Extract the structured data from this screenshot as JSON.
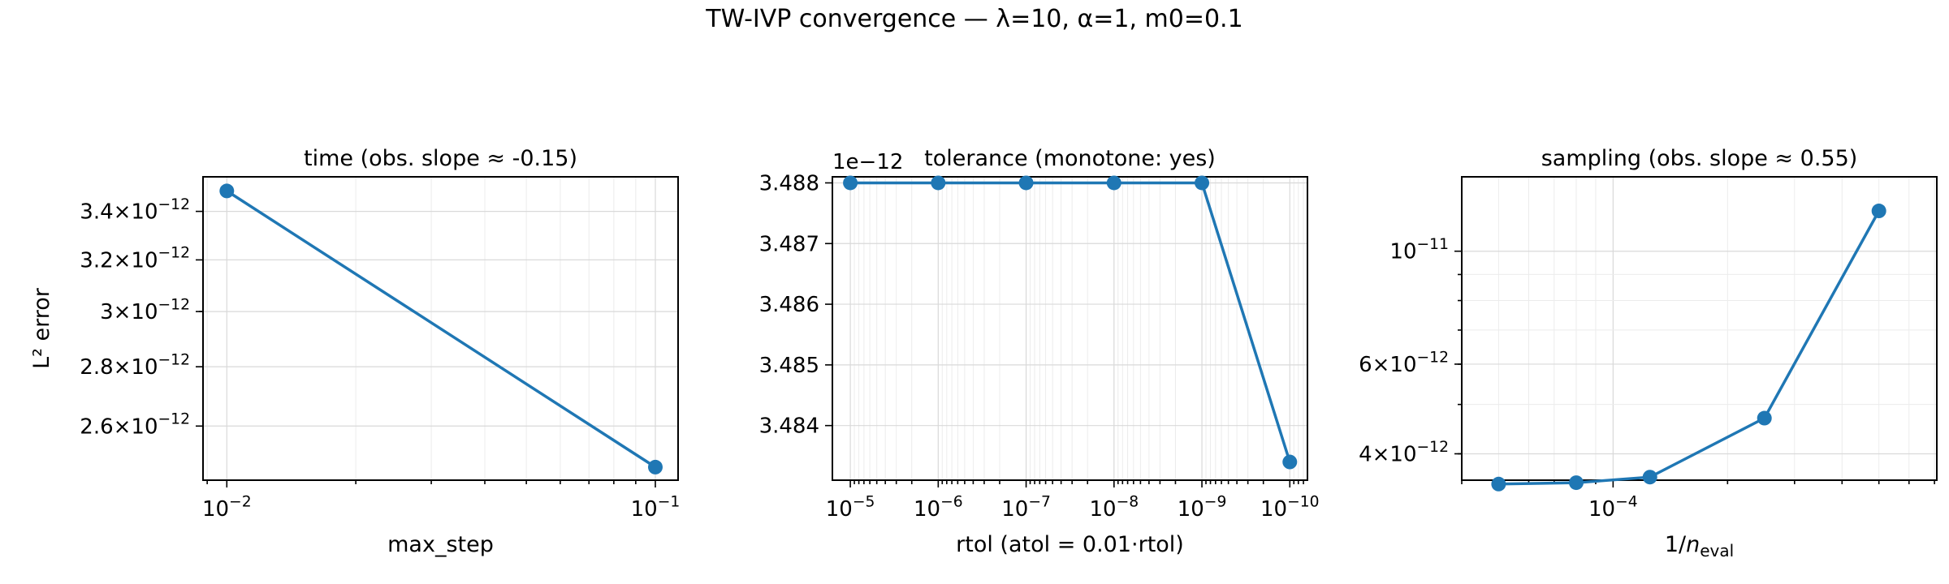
{
  "figure": {
    "title": "TW-IVP convergence — λ=10, α=1, m0=0.1",
    "colors": {
      "series": "#1f77b4"
    }
  },
  "chart_data": [
    {
      "type": "line",
      "title": "time (obs. slope ≈ -0.15)",
      "xlabel": "max_step",
      "ylabel": "L² error",
      "xscale": "log",
      "yscale": "log",
      "xlim": [
        0.0088,
        0.113
      ],
      "ylim": [
        2.43e-12,
        3.55e-12
      ],
      "x": [
        0.01,
        0.1
      ],
      "y": [
        3.488e-12,
        2.47e-12
      ],
      "xticks": [
        {
          "value": 0.01,
          "base": "10",
          "exp": "−2"
        },
        {
          "value": 0.1,
          "base": "10",
          "exp": "−1"
        }
      ],
      "yticks": [
        {
          "value": 2.6e-12,
          "mant": "2.6",
          "base": "10",
          "exp": "−12"
        },
        {
          "value": 2.8e-12,
          "mant": "2.8",
          "base": "10",
          "exp": "−12"
        },
        {
          "value": 3e-12,
          "mant": "3",
          "base": "10",
          "exp": "−12"
        },
        {
          "value": 3.2e-12,
          "mant": "3.2",
          "base": "10",
          "exp": "−12"
        },
        {
          "value": 3.4e-12,
          "mant": "3.4",
          "base": "10",
          "exp": "−12"
        }
      ],
      "grid": true
    },
    {
      "type": "line",
      "title": "tolerance (monotone: yes)",
      "xlabel": "rtol (atol = 0.01·rtol)",
      "ylabel": "",
      "xscale": "log",
      "xinverted": true,
      "yscale": "linear",
      "offset_label": "1e−12",
      "xlim": [
        1.6e-05,
        6.3e-11
      ],
      "ylim": [
        3.4831,
        3.4881
      ],
      "x": [
        1e-05,
        1e-06,
        1e-07,
        1e-08,
        1e-09,
        1e-10
      ],
      "y": [
        3.488,
        3.488,
        3.488,
        3.488,
        3.488,
        3.4834
      ],
      "xticks": [
        {
          "value": 1e-05,
          "base": "10",
          "exp": "−5"
        },
        {
          "value": 1e-06,
          "base": "10",
          "exp": "−6"
        },
        {
          "value": 1e-07,
          "base": "10",
          "exp": "−7"
        },
        {
          "value": 1e-08,
          "base": "10",
          "exp": "−8"
        },
        {
          "value": 1e-09,
          "base": "10",
          "exp": "−9"
        },
        {
          "value": 1e-10,
          "base": "10",
          "exp": "−10"
        }
      ],
      "yticks": [
        {
          "value": 3.484,
          "label": "3.484"
        },
        {
          "value": 3.485,
          "label": "3.485"
        },
        {
          "value": 3.486,
          "label": "3.486"
        },
        {
          "value": 3.487,
          "label": "3.487"
        },
        {
          "value": 3.488,
          "label": "3.488"
        }
      ],
      "grid": true
    },
    {
      "type": "line",
      "title": "sampling (obs. slope ≈ 0.55)",
      "xlabel": "1/n_eval",
      "ylabel": "",
      "xscale": "log",
      "yscale": "log",
      "xlim": [
        4e-05,
        0.00071
      ],
      "ylim": [
        3.55e-12,
        1.4e-11
      ],
      "x": [
        5e-05,
        8e-05,
        0.000125,
        0.00025,
        0.0005
      ],
      "y": [
        3.488e-12,
        3.51e-12,
        3.6e-12,
        4.7e-12,
        1.2e-11
      ],
      "xticks": [
        {
          "value": 0.0001,
          "base": "10",
          "exp": "−4"
        }
      ],
      "yticks": [
        {
          "value": 4e-12,
          "mant": "4",
          "base": "10",
          "exp": "−12"
        },
        {
          "value": 6e-12,
          "mant": "6",
          "base": "10",
          "exp": "−12"
        },
        {
          "value": 1e-11,
          "mant": "",
          "base": "10",
          "exp": "−11"
        }
      ],
      "grid": true
    }
  ]
}
